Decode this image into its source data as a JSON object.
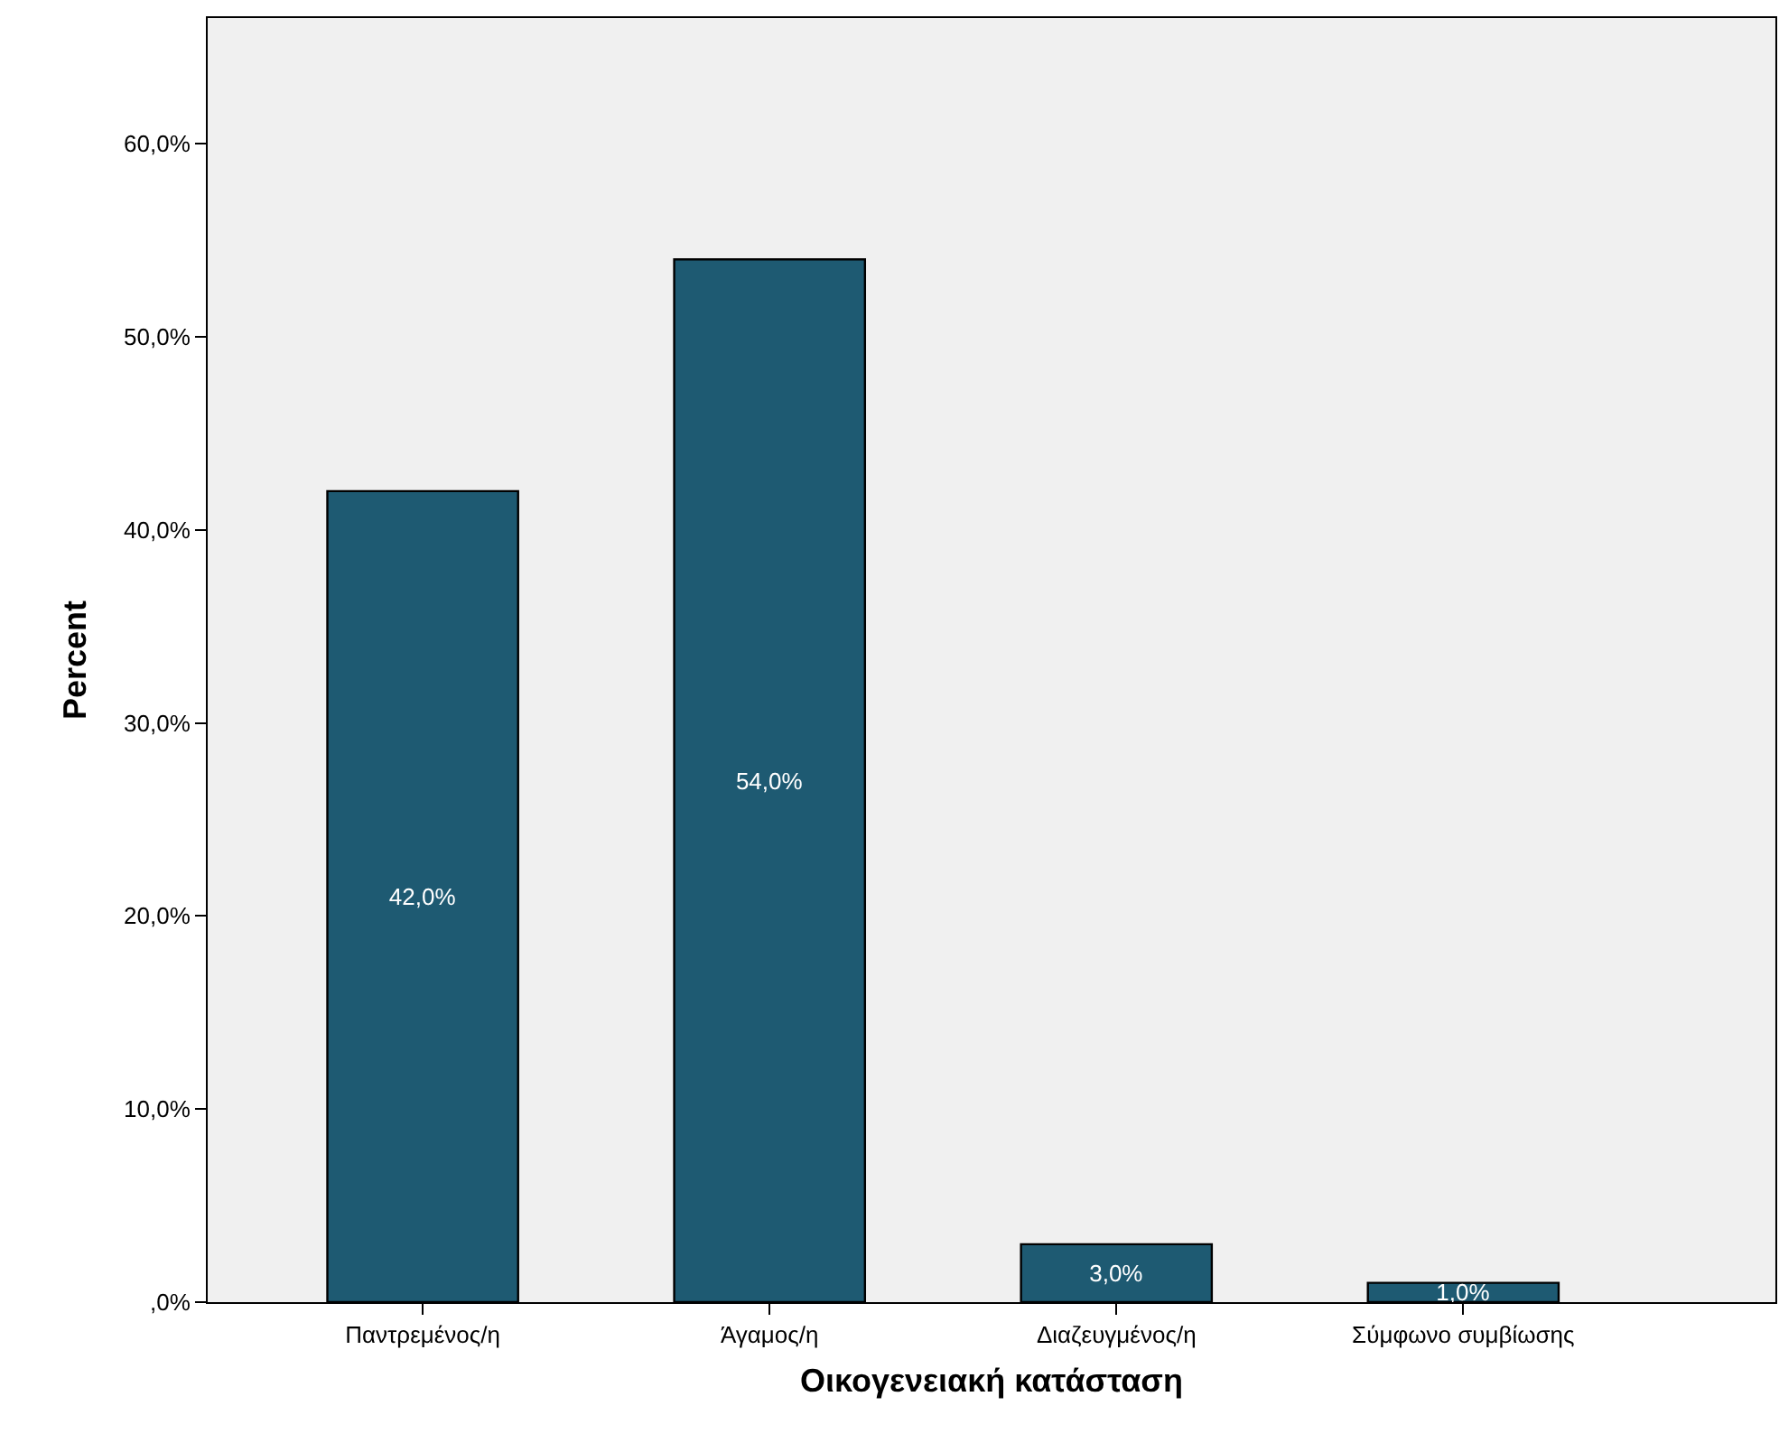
{
  "chart_data": {
    "type": "bar",
    "xlabel": "Οικογενειακή κατάσταση",
    "ylabel": "Percent",
    "categories": [
      "Παντρεμένος/η",
      "Άγαμος/η",
      "Διαζευγμένος/η",
      "Σύμφωνο συμβίωσης"
    ],
    "values": [
      42.0,
      54.0,
      3.0,
      1.0
    ],
    "color": "#1e5a72",
    "value_labels": [
      "42,0%",
      "54,0%",
      "3,0%",
      "1,0%"
    ],
    "ylim": [
      0,
      66.5
    ],
    "yticks": [
      {
        "value": 0,
        "label": ",0%"
      },
      {
        "value": 10,
        "label": "10,0%"
      },
      {
        "value": 20,
        "label": "20,0%"
      },
      {
        "value": 30,
        "label": "30,0%"
      },
      {
        "value": 40,
        "label": "40,0%"
      },
      {
        "value": 50,
        "label": "50,0%"
      },
      {
        "value": 60,
        "label": "60,0%"
      }
    ],
    "grid": false,
    "legend": false
  }
}
